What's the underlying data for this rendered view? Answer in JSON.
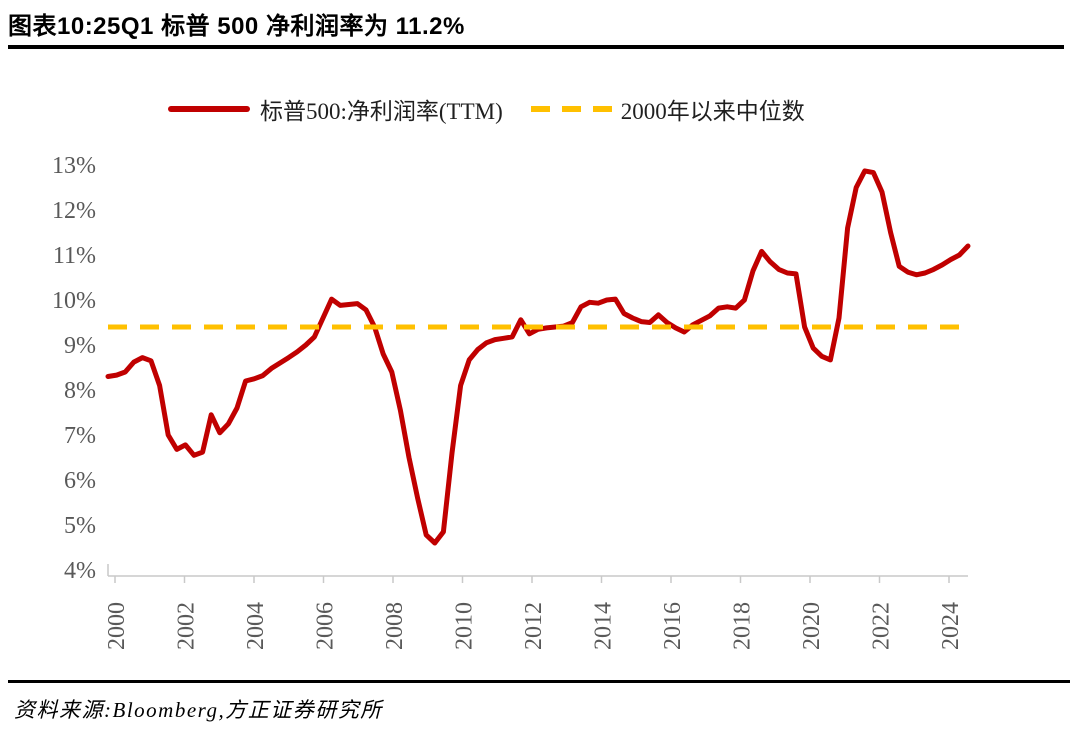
{
  "page": {
    "title": "图表10:25Q1 标普 500 净利润率为 11.2%",
    "source_note": "资料来源:Bloomberg,方正证券研究所"
  },
  "legend": {
    "series_label": "标普500:净利润率(TTM)",
    "median_label": "2000年以来中位数"
  },
  "colors": {
    "series": "#C00000",
    "median": "#FFC000",
    "axis_text": "#595959",
    "axis_line": "#C9C9C9",
    "title_text": "#000000"
  },
  "chart_data": {
    "type": "line",
    "title": "图表10:25Q1 标普 500 净利润率为 11.2%",
    "xlabel": "",
    "ylabel": "",
    "ylim": [
      4,
      13
    ],
    "grid": false,
    "legend_position": "top",
    "x_start_year": 2000,
    "x_step_years": 0.25,
    "x_end_label": "25Q1",
    "latest_value_pct": 11.2,
    "yticks": [
      {
        "value": 13,
        "label": "13%"
      },
      {
        "value": 12,
        "label": "12%"
      },
      {
        "value": 11,
        "label": "11%"
      },
      {
        "value": 10,
        "label": "10%"
      },
      {
        "value": 9,
        "label": "9%"
      },
      {
        "value": 8,
        "label": "8%"
      },
      {
        "value": 7,
        "label": "7%"
      },
      {
        "value": 6,
        "label": "6%"
      },
      {
        "value": 5,
        "label": "5%"
      },
      {
        "value": 4,
        "label": "4%"
      }
    ],
    "xticks": [
      {
        "year": 2000,
        "label": "2000"
      },
      {
        "year": 2002,
        "label": "2002"
      },
      {
        "year": 2004,
        "label": "2004"
      },
      {
        "year": 2006,
        "label": "2006"
      },
      {
        "year": 2008,
        "label": "2008"
      },
      {
        "year": 2010,
        "label": "2010"
      },
      {
        "year": 2012,
        "label": "2012"
      },
      {
        "year": 2014,
        "label": "2014"
      },
      {
        "year": 2016,
        "label": "2016"
      },
      {
        "year": 2018,
        "label": "2018"
      },
      {
        "year": 2020,
        "label": "2020"
      },
      {
        "year": 2022,
        "label": "2022"
      },
      {
        "year": 2024,
        "label": "2024"
      }
    ],
    "median": {
      "name": "2000年以来中位数",
      "value": 9.4,
      "color": "#FFC000",
      "style": "dashed"
    },
    "series": [
      {
        "name": "标普500:净利润率(TTM)",
        "color": "#C00000",
        "unit": "%",
        "values": [
          8.3,
          8.33,
          8.4,
          8.62,
          8.72,
          8.65,
          8.1,
          7.0,
          6.68,
          6.78,
          6.55,
          6.62,
          7.45,
          7.05,
          7.25,
          7.6,
          8.2,
          8.25,
          8.32,
          8.48,
          8.6,
          8.72,
          8.85,
          9.0,
          9.18,
          9.6,
          10.02,
          9.88,
          9.9,
          9.92,
          9.78,
          9.4,
          8.8,
          8.4,
          7.55,
          6.5,
          5.6,
          4.78,
          4.6,
          4.85,
          6.6,
          8.1,
          8.67,
          8.9,
          9.05,
          9.12,
          9.15,
          9.18,
          9.56,
          9.25,
          9.35,
          9.38,
          9.4,
          9.42,
          9.5,
          9.85,
          9.95,
          9.93,
          10.0,
          10.02,
          9.7,
          9.6,
          9.52,
          9.5,
          9.67,
          9.5,
          9.38,
          9.29,
          9.45,
          9.55,
          9.65,
          9.82,
          9.85,
          9.82,
          10.0,
          10.65,
          11.08,
          10.85,
          10.68,
          10.6,
          10.58,
          9.4,
          8.93,
          8.75,
          8.67,
          9.6,
          11.6,
          12.5,
          12.87,
          12.83,
          12.4,
          11.5,
          10.75,
          10.62,
          10.56,
          10.6,
          10.68,
          10.78,
          10.9,
          11.0,
          11.2
        ]
      }
    ]
  }
}
